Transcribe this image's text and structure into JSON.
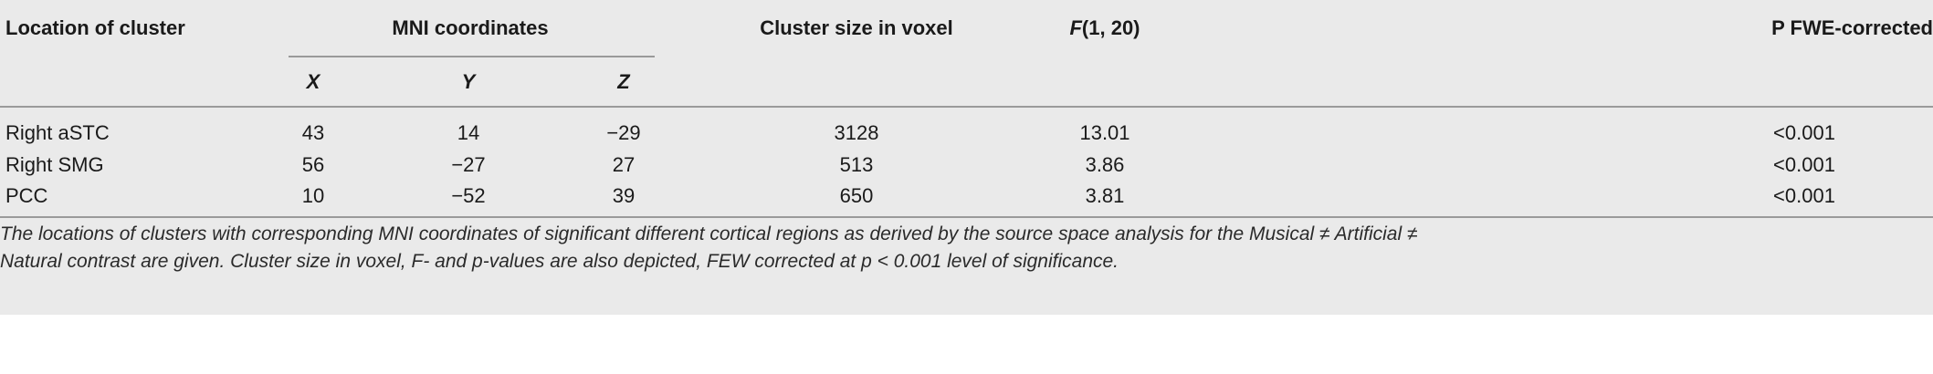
{
  "table": {
    "headers": {
      "location": "Location of cluster",
      "mni": "MNI coordinates",
      "x": "X",
      "y": "Y",
      "z": "Z",
      "cluster_size": "Cluster size in voxel",
      "f_stat_italic": "F",
      "f_stat_rest": "(1, 20)",
      "p": "P FWE-corrected"
    },
    "rows": [
      {
        "location": "Right aSTC",
        "x": "43",
        "y": "14",
        "z": "−29",
        "size": "3128",
        "f": "13.01",
        "p": "<0.001"
      },
      {
        "location": "Right SMG",
        "x": "56",
        "y": "−27",
        "z": "27",
        "size": "513",
        "f": "3.86",
        "p": "<0.001"
      },
      {
        "location": "PCC",
        "x": "10",
        "y": "−52",
        "z": "39",
        "size": "650",
        "f": "3.81",
        "p": "<0.001"
      }
    ]
  },
  "footnote": {
    "line1": "The locations of clusters with corresponding MNI coordinates of significant different cortical regions as derived by the source space analysis for the Musical ≠ Artificial ≠",
    "line2": "Natural contrast are given. Cluster size in voxel, F- and p-values are also depicted, FEW corrected at p < 0.001 level of significance."
  }
}
